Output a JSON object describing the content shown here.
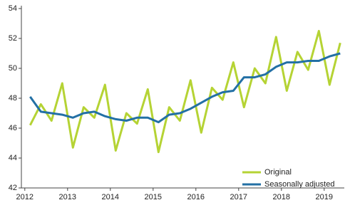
{
  "chart_data": {
    "type": "line",
    "x": [
      2012.125,
      2012.375,
      2012.625,
      2012.875,
      2013.125,
      2013.375,
      2013.625,
      2013.875,
      2014.125,
      2014.375,
      2014.625,
      2014.875,
      2015.125,
      2015.375,
      2015.625,
      2015.875,
      2016.125,
      2016.375,
      2016.625,
      2016.875,
      2017.125,
      2017.375,
      2017.625,
      2017.875,
      2018.125,
      2018.375,
      2018.625,
      2018.875,
      2019.125,
      2019.375
    ],
    "series": [
      {
        "name": "Original",
        "color": "#b5d334",
        "values": [
          46.2,
          47.6,
          46.5,
          49.0,
          44.7,
          47.4,
          46.7,
          48.9,
          44.5,
          47.0,
          46.3,
          48.6,
          44.4,
          47.4,
          46.5,
          49.2,
          45.7,
          48.7,
          47.9,
          50.4,
          47.4,
          50.0,
          49.0,
          52.1,
          48.5,
          51.1,
          49.9,
          52.5,
          48.9,
          51.7
        ]
      },
      {
        "name": "Seasonally adjusted",
        "color": "#2370a5",
        "values": [
          48.1,
          47.1,
          47.0,
          46.9,
          46.7,
          47.0,
          47.1,
          46.8,
          46.6,
          46.5,
          46.7,
          46.7,
          46.4,
          46.9,
          47.0,
          47.3,
          47.7,
          48.1,
          48.4,
          48.5,
          49.4,
          49.4,
          49.6,
          50.1,
          50.4,
          50.4,
          50.5,
          50.5,
          50.8,
          51.0
        ]
      }
    ],
    "xlim": [
      2011.92,
      2019.47
    ],
    "xticks": [
      2012,
      2013,
      2014,
      2015,
      2016,
      2017,
      2018,
      2019
    ],
    "ylim": [
      42,
      54
    ],
    "yticks": [
      42,
      44,
      46,
      48,
      50,
      52,
      54
    ],
    "legend": "bottom-right"
  }
}
